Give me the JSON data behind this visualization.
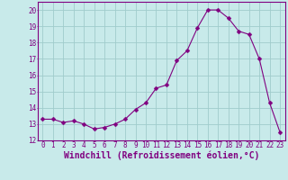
{
  "x": [
    0,
    1,
    2,
    3,
    4,
    5,
    6,
    7,
    8,
    9,
    10,
    11,
    12,
    13,
    14,
    15,
    16,
    17,
    18,
    19,
    20,
    21,
    22,
    23
  ],
  "y": [
    13.3,
    13.3,
    13.1,
    13.2,
    13.0,
    12.7,
    12.8,
    13.0,
    13.3,
    13.9,
    14.3,
    15.2,
    15.4,
    16.9,
    17.5,
    18.9,
    20.0,
    20.0,
    19.5,
    18.7,
    18.5,
    17.0,
    14.3,
    12.5
  ],
  "line_color": "#800080",
  "marker": "D",
  "marker_size": 2.5,
  "bg_color": "#c8eaea",
  "grid_color": "#a0cccc",
  "xlabel": "Windchill (Refroidissement éolien,°C)",
  "ylim": [
    12,
    20.5
  ],
  "xlim": [
    -0.5,
    23.5
  ],
  "yticks": [
    12,
    13,
    14,
    15,
    16,
    17,
    18,
    19,
    20
  ],
  "xticks": [
    0,
    1,
    2,
    3,
    4,
    5,
    6,
    7,
    8,
    9,
    10,
    11,
    12,
    13,
    14,
    15,
    16,
    17,
    18,
    19,
    20,
    21,
    22,
    23
  ],
  "tick_fontsize": 5.5,
  "xlabel_fontsize": 7.0,
  "label_color": "#800080",
  "spine_color": "#800080"
}
